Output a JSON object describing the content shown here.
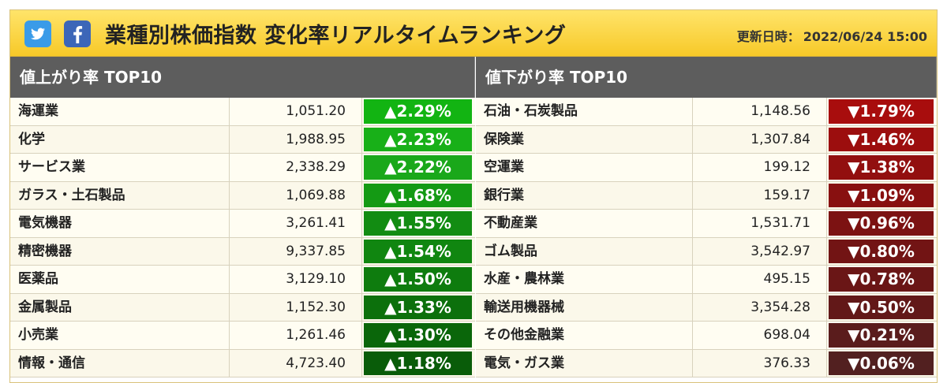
{
  "header": {
    "title": "業種別株価指数 変化率リアルタイムランキング",
    "updated_label": "更新日時：",
    "updated_value": "2022/06/24 15:00",
    "icons": [
      "twitter-icon",
      "facebook-icon"
    ]
  },
  "gainers": {
    "heading": "値上がり率 TOP10",
    "rows": [
      {
        "name": "海運業",
        "price": "1,051.20",
        "change": "▲2.29%"
      },
      {
        "name": "化学",
        "price": "1,988.95",
        "change": "▲2.23%"
      },
      {
        "name": "サービス業",
        "price": "2,338.29",
        "change": "▲2.22%"
      },
      {
        "name": "ガラス・土石製品",
        "price": "1,069.88",
        "change": "▲1.68%"
      },
      {
        "name": "電気機器",
        "price": "3,261.41",
        "change": "▲1.55%"
      },
      {
        "name": "精密機器",
        "price": "9,337.85",
        "change": "▲1.54%"
      },
      {
        "name": "医薬品",
        "price": "3,129.10",
        "change": "▲1.50%"
      },
      {
        "name": "金属製品",
        "price": "1,152.30",
        "change": "▲1.33%"
      },
      {
        "name": "小売業",
        "price": "1,261.46",
        "change": "▲1.30%"
      },
      {
        "name": "情報・通信",
        "price": "4,723.40",
        "change": "▲1.18%"
      }
    ],
    "colors": [
      "#12b412",
      "#18b018",
      "#1aa81a",
      "#149a14",
      "#128c12",
      "#108610",
      "#0e7c0e",
      "#0c700c",
      "#0a660a",
      "#095c09"
    ]
  },
  "losers": {
    "heading": "値下がり率 TOP10",
    "rows": [
      {
        "name": "石油・石炭製品",
        "price": "1,148.56",
        "change": "▼1.79%"
      },
      {
        "name": "保険業",
        "price": "1,307.84",
        "change": "▼1.46%"
      },
      {
        "name": "空運業",
        "price": "199.12",
        "change": "▼1.38%"
      },
      {
        "name": "銀行業",
        "price": "159.17",
        "change": "▼1.09%"
      },
      {
        "name": "不動産業",
        "price": "1,531.71",
        "change": "▼0.96%"
      },
      {
        "name": "ゴム製品",
        "price": "3,542.97",
        "change": "▼0.80%"
      },
      {
        "name": "水産・農林業",
        "price": "495.15",
        "change": "▼0.78%"
      },
      {
        "name": "輸送用機器械",
        "price": "3,354.28",
        "change": "▼0.50%"
      },
      {
        "name": "その他金融業",
        "price": "698.04",
        "change": "▼0.21%"
      },
      {
        "name": "電気・ガス業",
        "price": "376.33",
        "change": "▼0.06%"
      }
    ],
    "colors": [
      "#a80d0d",
      "#9c0e0e",
      "#920f0f",
      "#881010",
      "#7c1212",
      "#721414",
      "#6a1616",
      "#621818",
      "#5a1c1c",
      "#522020"
    ]
  }
}
